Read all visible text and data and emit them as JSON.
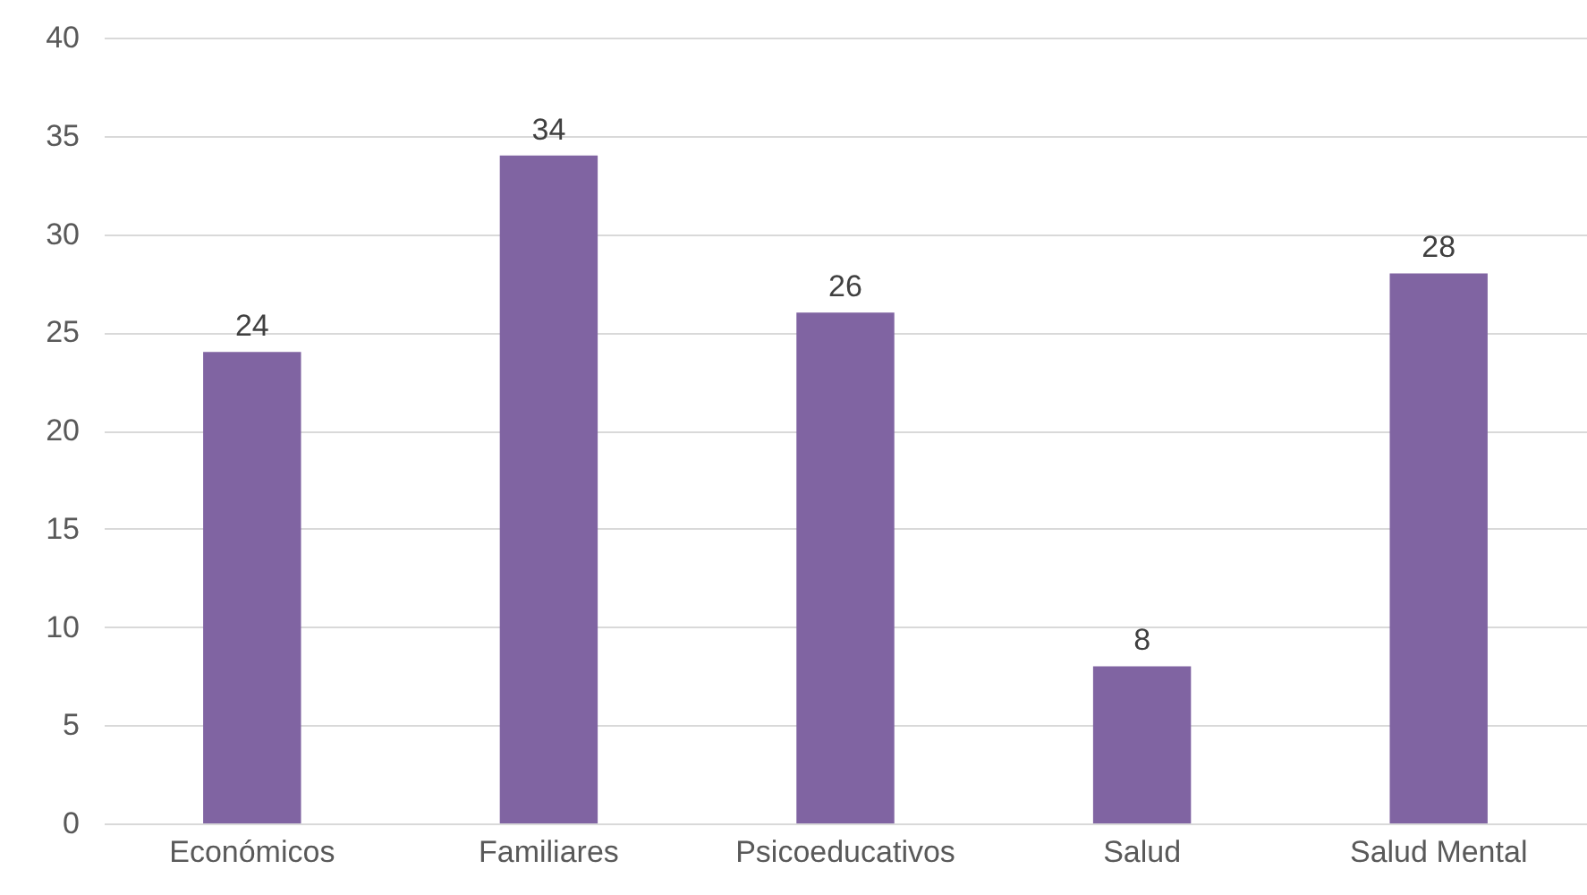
{
  "chart_data": {
    "type": "bar",
    "categories": [
      "Económicos",
      "Familiares",
      "Psicoeducativos",
      "Salud",
      "Salud Mental"
    ],
    "values": [
      24,
      34,
      26,
      8,
      28
    ],
    "color": "#8064a2",
    "ylim": [
      0,
      40
    ],
    "yticks": [
      0,
      5,
      10,
      15,
      20,
      25,
      30,
      35,
      40
    ],
    "grid": "y",
    "data_labels": true
  }
}
